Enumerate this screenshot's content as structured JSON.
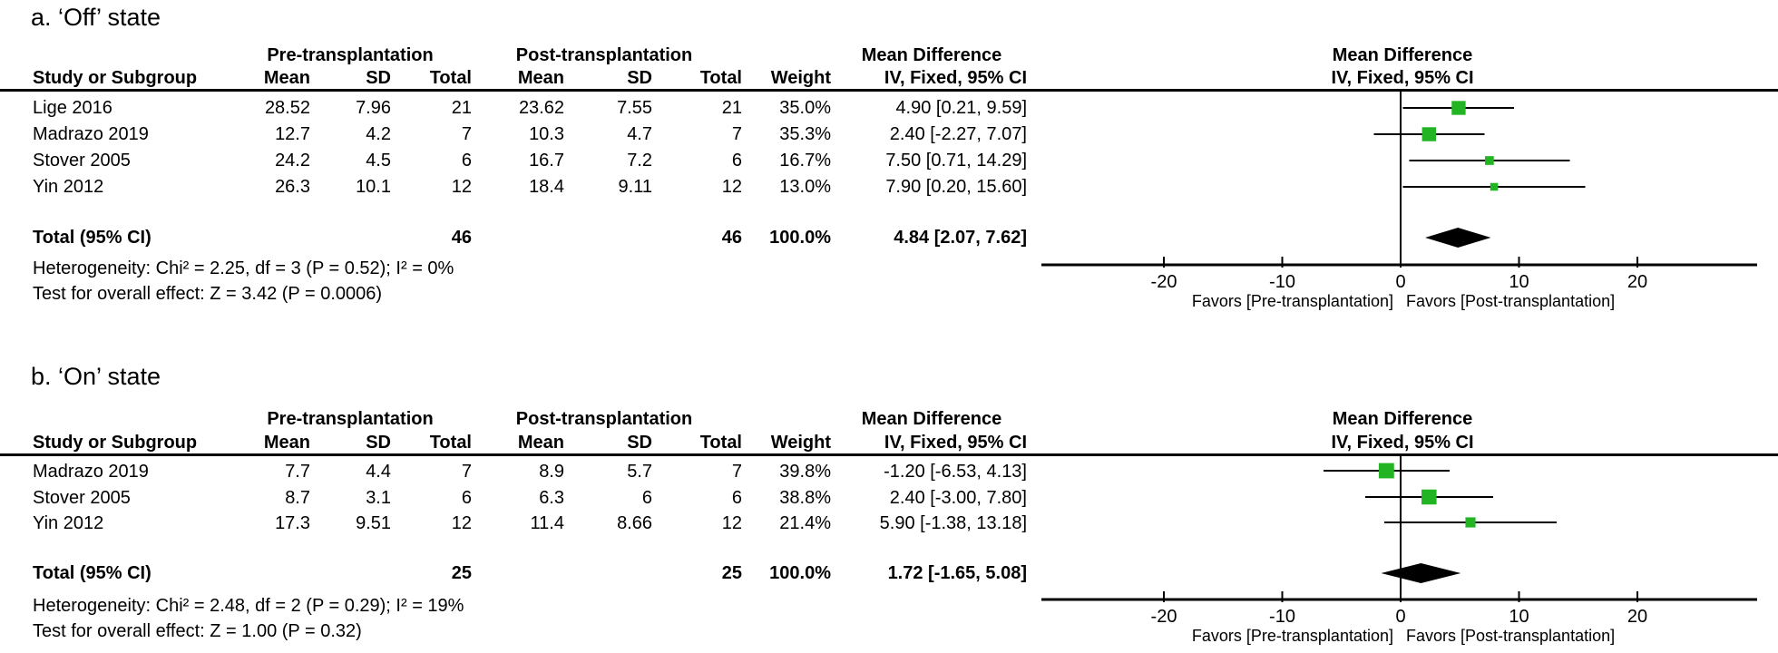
{
  "figure": {
    "background": "#ffffff",
    "marker_color": "#22b422",
    "line_color": "#000000"
  },
  "panels": [
    {
      "title": "a. ‘Off’ state",
      "group_headers": {
        "pre": "Pre-transplantation",
        "post": "Post-transplantation",
        "md": "Mean Difference",
        "plot_md": "Mean Difference"
      },
      "col_headers": {
        "study": "Study or Subgroup",
        "pre_mean": "Mean",
        "pre_sd": "SD",
        "pre_total": "Total",
        "post_mean": "Mean",
        "post_sd": "SD",
        "post_total": "Total",
        "weight": "Weight",
        "ci": "IV, Fixed, 95% CI",
        "plot_ci": "IV, Fixed, 95% CI"
      },
      "rows": [
        {
          "study": "Lige 2016",
          "pre_mean": "28.52",
          "pre_sd": "7.96",
          "pre_total": "21",
          "post_mean": "23.62",
          "post_sd": "7.55",
          "post_total": "21",
          "weight": "35.0%",
          "ci_text": "4.90 [0.21, 9.59]"
        },
        {
          "study": "Madrazo 2019",
          "pre_mean": "12.7",
          "pre_sd": "4.2",
          "pre_total": "7",
          "post_mean": "10.3",
          "post_sd": "4.7",
          "post_total": "7",
          "weight": "35.3%",
          "ci_text": "2.40 [-2.27, 7.07]"
        },
        {
          "study": "Stover 2005",
          "pre_mean": "24.2",
          "pre_sd": "4.5",
          "pre_total": "6",
          "post_mean": "16.7",
          "post_sd": "7.2",
          "post_total": "6",
          "weight": "16.7%",
          "ci_text": "7.50 [0.71, 14.29]"
        },
        {
          "study": "Yin 2012",
          "pre_mean": "26.3",
          "pre_sd": "10.1",
          "pre_total": "12",
          "post_mean": "18.4",
          "post_sd": "9.11",
          "post_total": "12",
          "weight": "13.0%",
          "ci_text": "7.90 [0.20, 15.60]"
        }
      ],
      "total": {
        "label": "Total (95% CI)",
        "pre_total": "46",
        "post_total": "46",
        "weight": "100.0%",
        "ci_text": "4.84 [2.07, 7.62]"
      },
      "heterogeneity": "Heterogeneity: Chi² = 2.25, df = 3 (P = 0.52); I² = 0%",
      "overall_effect": "Test for overall effect: Z = 3.42 (P = 0.0006)",
      "favors_left": "Favors [Pre-transplantation]",
      "favors_right": "Favors [Post-transplantation]"
    },
    {
      "title": "b. ‘On’ state",
      "group_headers": {
        "pre": "Pre-transplantation",
        "post": "Post-transplantation",
        "md": "Mean Difference",
        "plot_md": "Mean Difference"
      },
      "col_headers": {
        "study": "Study or Subgroup",
        "pre_mean": "Mean",
        "pre_sd": "SD",
        "pre_total": "Total",
        "post_mean": "Mean",
        "post_sd": "SD",
        "post_total": "Total",
        "weight": "Weight",
        "ci": "IV, Fixed, 95% CI",
        "plot_ci": "IV, Fixed, 95% CI"
      },
      "rows": [
        {
          "study": "Madrazo 2019",
          "pre_mean": "7.7",
          "pre_sd": "4.4",
          "pre_total": "7",
          "post_mean": "8.9",
          "post_sd": "5.7",
          "post_total": "7",
          "weight": "39.8%",
          "ci_text": "-1.20 [-6.53, 4.13]"
        },
        {
          "study": "Stover 2005",
          "pre_mean": "8.7",
          "pre_sd": "3.1",
          "pre_total": "6",
          "post_mean": "6.3",
          "post_sd": "6",
          "post_total": "6",
          "weight": "38.8%",
          "ci_text": "2.40 [-3.00, 7.80]"
        },
        {
          "study": "Yin 2012",
          "pre_mean": "17.3",
          "pre_sd": "9.51",
          "pre_total": "12",
          "post_mean": "11.4",
          "post_sd": "8.66",
          "post_total": "12",
          "weight": "21.4%",
          "ci_text": "5.90 [-1.38, 13.18]"
        }
      ],
      "total": {
        "label": "Total (95% CI)",
        "pre_total": "25",
        "post_total": "25",
        "weight": "100.0%",
        "ci_text": "1.72 [-1.65, 5.08]"
      },
      "heterogeneity": "Heterogeneity: Chi² = 2.48, df = 2 (P = 0.29); I² = 19%",
      "overall_effect": "Test for overall effect: Z = 1.00 (P = 0.32)",
      "favors_left": "Favors [Pre-transplantation]",
      "favors_right": "Favors [Post-transplantation]"
    }
  ],
  "chart_data": [
    {
      "type": "forest",
      "title": "a. 'Off' state",
      "effect_measure": "Mean Difference (IV, Fixed, 95% CI)",
      "studies": [
        {
          "name": "Lige 2016",
          "est": 4.9,
          "lo": 0.21,
          "hi": 9.59,
          "weight_pct": 35.0
        },
        {
          "name": "Madrazo 2019",
          "est": 2.4,
          "lo": -2.27,
          "hi": 7.07,
          "weight_pct": 35.3
        },
        {
          "name": "Stover 2005",
          "est": 7.5,
          "lo": 0.71,
          "hi": 14.29,
          "weight_pct": 16.7
        },
        {
          "name": "Yin 2012",
          "est": 7.9,
          "lo": 0.2,
          "hi": 15.6,
          "weight_pct": 13.0
        }
      ],
      "total": {
        "est": 4.84,
        "lo": 2.07,
        "hi": 7.62,
        "n_pre": 46,
        "n_post": 46,
        "weight_pct": 100.0
      },
      "heterogeneity": {
        "chi2": 2.25,
        "df": 3,
        "p": 0.52,
        "i2_pct": 0
      },
      "overall_effect": {
        "z": 3.42,
        "p": 0.0006
      },
      "axis": {
        "ticks": [
          -20,
          -10,
          0,
          10,
          20
        ],
        "min": -30,
        "max": 30
      },
      "xlabel_left": "Favors [Pre-transplantation]",
      "xlabel_right": "Favors [Post-transplantation]"
    },
    {
      "type": "forest",
      "title": "b. 'On' state",
      "effect_measure": "Mean Difference (IV, Fixed, 95% CI)",
      "studies": [
        {
          "name": "Madrazo 2019",
          "est": -1.2,
          "lo": -6.53,
          "hi": 4.13,
          "weight_pct": 39.8
        },
        {
          "name": "Stover 2005",
          "est": 2.4,
          "lo": -3.0,
          "hi": 7.8,
          "weight_pct": 38.8
        },
        {
          "name": "Yin 2012",
          "est": 5.9,
          "lo": -1.38,
          "hi": 13.18,
          "weight_pct": 21.4
        }
      ],
      "total": {
        "est": 1.72,
        "lo": -1.65,
        "hi": 5.08,
        "n_pre": 25,
        "n_post": 25,
        "weight_pct": 100.0
      },
      "heterogeneity": {
        "chi2": 2.48,
        "df": 2,
        "p": 0.29,
        "i2_pct": 19
      },
      "overall_effect": {
        "z": 1.0,
        "p": 0.32
      },
      "axis": {
        "ticks": [
          -20,
          -10,
          0,
          10,
          20
        ],
        "min": -30,
        "max": 30
      },
      "xlabel_left": "Favors [Pre-transplantation]",
      "xlabel_right": "Favors [Post-transplantation]"
    }
  ]
}
